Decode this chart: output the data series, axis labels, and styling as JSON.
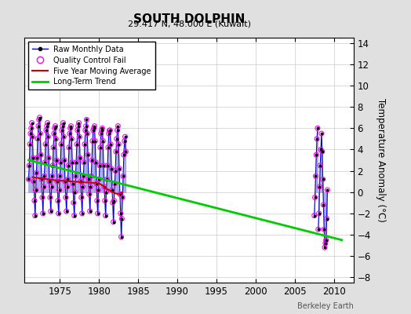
{
  "title": "SOUTH DOLPHIN",
  "subtitle": "29.417 N, 48.000 E (Kuwait)",
  "ylabel": "Temperature Anomaly (°C)",
  "watermark": "Berkeley Earth",
  "xlim": [
    1970.5,
    2012.5
  ],
  "ylim": [
    -8.5,
    14.5
  ],
  "yticks": [
    -8,
    -6,
    -4,
    -2,
    0,
    2,
    4,
    6,
    8,
    10,
    12,
    14
  ],
  "xticks": [
    1975,
    1980,
    1985,
    1990,
    1995,
    2000,
    2005,
    2010
  ],
  "background_color": "#e0e0e0",
  "plot_bg_color": "#ffffff",
  "raw_data": {
    "years": [
      1971.0,
      1971.083,
      1971.167,
      1971.25,
      1971.333,
      1971.417,
      1971.5,
      1971.583,
      1971.667,
      1971.75,
      1971.833,
      1971.917,
      1972.0,
      1972.083,
      1972.167,
      1972.25,
      1972.333,
      1972.417,
      1972.5,
      1972.583,
      1972.667,
      1972.75,
      1972.833,
      1972.917,
      1973.0,
      1973.083,
      1973.167,
      1973.25,
      1973.333,
      1973.417,
      1973.5,
      1973.583,
      1973.667,
      1973.75,
      1973.833,
      1973.917,
      1974.0,
      1974.083,
      1974.167,
      1974.25,
      1974.333,
      1974.417,
      1974.5,
      1974.583,
      1974.667,
      1974.75,
      1974.833,
      1974.917,
      1975.0,
      1975.083,
      1975.167,
      1975.25,
      1975.333,
      1975.417,
      1975.5,
      1975.583,
      1975.667,
      1975.75,
      1975.833,
      1975.917,
      1976.0,
      1976.083,
      1976.167,
      1976.25,
      1976.333,
      1976.417,
      1976.5,
      1976.583,
      1976.667,
      1976.75,
      1976.833,
      1976.917,
      1977.0,
      1977.083,
      1977.167,
      1977.25,
      1977.333,
      1977.417,
      1977.5,
      1977.583,
      1977.667,
      1977.75,
      1977.833,
      1977.917,
      1978.0,
      1978.083,
      1978.167,
      1978.25,
      1978.333,
      1978.417,
      1978.5,
      1978.583,
      1978.667,
      1978.75,
      1978.833,
      1978.917,
      1979.0,
      1979.083,
      1979.167,
      1979.25,
      1979.333,
      1979.417,
      1979.5,
      1979.583,
      1979.667,
      1979.75,
      1979.833,
      1979.917,
      1980.0,
      1980.083,
      1980.167,
      1980.25,
      1980.333,
      1980.417,
      1980.5,
      1980.583,
      1980.667,
      1980.75,
      1980.833,
      1980.917,
      1981.0,
      1981.083,
      1981.167,
      1981.25,
      1981.333,
      1981.417,
      1981.5,
      1981.583,
      1981.667,
      1981.75,
      1981.833,
      1981.917,
      1982.0,
      1982.083,
      1982.167,
      1982.25,
      1982.333,
      1982.417,
      1982.5,
      1982.583,
      1982.667,
      1982.75,
      1982.833,
      1982.917,
      1983.0,
      1983.083,
      1983.167,
      1983.25,
      1983.333,
      1983.417,
      2007.5,
      2007.583,
      2007.667,
      2007.75,
      2007.833,
      2007.917,
      2008.0,
      2008.083,
      2008.167,
      2008.25,
      2008.333,
      2008.417,
      2008.5,
      2008.583,
      2008.667,
      2008.75,
      2008.833,
      2008.917,
      2009.0,
      2009.083,
      2009.167
    ],
    "values": [
      1.2,
      2.5,
      4.5,
      5.5,
      6.0,
      6.5,
      5.2,
      3.2,
      1.0,
      -0.8,
      -2.2,
      0.2,
      1.8,
      3.2,
      5.0,
      6.2,
      6.8,
      7.0,
      5.5,
      3.5,
      1.2,
      -0.5,
      -2.0,
      0.5,
      1.5,
      2.8,
      4.5,
      5.8,
      6.2,
      6.5,
      5.2,
      3.2,
      1.0,
      -0.5,
      -1.8,
      0.5,
      1.5,
      2.5,
      4.2,
      5.5,
      6.0,
      6.2,
      5.0,
      3.0,
      1.0,
      -0.8,
      -2.0,
      0.2,
      1.5,
      2.8,
      4.5,
      5.8,
      6.2,
      6.5,
      5.2,
      3.0,
      1.0,
      -0.5,
      -1.8,
      0.5,
      1.2,
      2.5,
      4.2,
      5.5,
      6.0,
      6.2,
      5.0,
      2.8,
      0.8,
      -1.0,
      -2.2,
      0.0,
      1.5,
      2.8,
      4.5,
      5.8,
      6.2,
      6.5,
      5.2,
      3.2,
      1.0,
      -0.5,
      -2.0,
      0.5,
      1.5,
      2.8,
      4.5,
      5.8,
      6.2,
      6.8,
      5.5,
      3.5,
      1.2,
      -0.2,
      -1.8,
      0.5,
      1.5,
      3.0,
      4.8,
      5.8,
      6.0,
      6.2,
      4.8,
      2.8,
      0.8,
      -0.8,
      -2.0,
      0.2,
      1.2,
      2.5,
      4.2,
      5.5,
      5.8,
      6.0,
      4.8,
      2.5,
      0.5,
      -0.8,
      -2.2,
      0.0,
      1.2,
      2.5,
      4.2,
      5.5,
      5.8,
      5.8,
      4.5,
      2.2,
      0.2,
      -1.0,
      -2.8,
      -0.8,
      0.8,
      2.0,
      3.8,
      5.0,
      5.8,
      6.2,
      4.5,
      2.2,
      -0.2,
      -2.0,
      -4.2,
      -2.5,
      -0.5,
      1.5,
      3.5,
      4.8,
      5.2,
      3.8,
      -2.2,
      -0.5,
      1.5,
      3.5,
      5.0,
      6.0,
      -3.5,
      -2.0,
      0.5,
      2.5,
      4.0,
      5.5,
      3.8,
      1.2,
      -1.2,
      -3.5,
      -5.2,
      -4.8,
      -4.5,
      -2.5,
      0.2
    ],
    "qc_fail_indices": [
      0,
      1,
      2,
      3,
      4,
      5,
      6,
      7,
      8,
      9,
      10,
      11,
      12,
      13,
      14,
      15,
      16,
      17,
      18,
      19,
      20,
      21,
      22,
      23,
      24,
      25,
      26,
      27,
      28,
      29,
      30,
      31,
      32,
      33,
      34,
      35,
      36,
      37,
      38,
      39,
      40,
      41,
      42,
      43,
      44,
      45,
      46,
      47,
      48,
      49,
      50,
      51,
      52,
      53,
      54,
      55,
      56,
      57,
      58,
      59,
      60,
      61,
      62,
      63,
      64,
      65,
      66,
      67,
      68,
      69,
      70,
      71,
      72,
      73,
      74,
      75,
      76,
      77,
      78,
      79,
      80,
      81,
      82,
      83,
      84,
      85,
      86,
      87,
      88,
      89,
      90,
      91,
      92,
      93,
      94,
      95,
      96,
      97,
      98,
      99,
      100,
      101,
      102,
      103,
      104,
      105,
      106,
      107,
      108,
      109,
      110,
      111,
      112,
      113,
      114,
      115,
      116,
      117,
      118,
      119,
      120,
      121,
      122,
      123,
      124,
      125,
      126,
      127,
      128,
      129,
      130,
      131,
      132,
      133,
      134,
      135,
      136,
      137,
      138,
      139,
      140,
      141,
      142,
      143,
      144,
      145,
      146,
      147,
      148,
      149,
      150,
      151,
      152,
      153,
      154,
      155,
      156,
      157,
      158,
      159,
      160,
      161,
      162,
      163,
      164,
      165,
      166,
      167,
      168,
      169,
      170
    ]
  },
  "moving_avg": {
    "years": [
      1971.5,
      1972.0,
      1972.5,
      1973.0,
      1973.5,
      1974.0,
      1974.5,
      1975.0,
      1975.5,
      1976.0,
      1976.5,
      1977.0,
      1977.5,
      1978.0,
      1978.5,
      1979.0,
      1979.5,
      1980.0,
      1980.5,
      1981.0,
      1981.5,
      1982.0,
      1982.5,
      1983.0
    ],
    "values": [
      1.4,
      1.35,
      1.3,
      1.25,
      1.2,
      1.15,
      1.1,
      1.08,
      1.05,
      1.02,
      1.0,
      0.98,
      0.95,
      0.92,
      0.9,
      0.88,
      0.85,
      0.82,
      0.6,
      0.3,
      0.1,
      -0.1,
      -0.2,
      0.0
    ]
  },
  "trend": {
    "years": [
      1971.0,
      2011.0
    ],
    "values": [
      3.0,
      -4.5
    ]
  },
  "colors": {
    "raw_line": "#0000cc",
    "raw_dot": "#000000",
    "qc_fail": "#ff00ff",
    "moving_avg": "#cc0000",
    "trend": "#00cc00",
    "stem_line": "#9999dd"
  }
}
